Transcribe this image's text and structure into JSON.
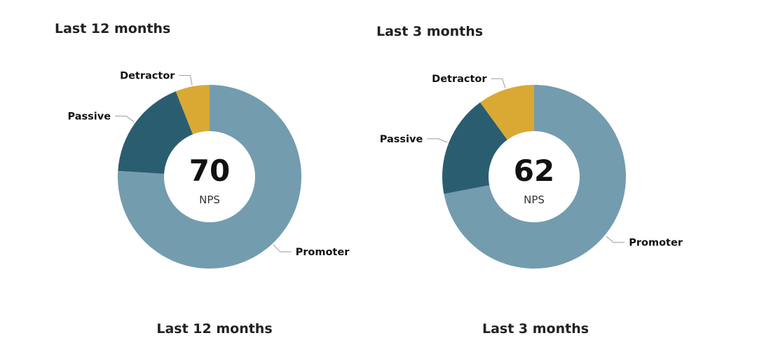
{
  "chart_data": [
    {
      "type": "pie",
      "title": "Last 12 months",
      "caption": "Last 12 months",
      "center_value": "70",
      "center_label": "NPS",
      "donut": true,
      "slices": [
        {
          "label": "Promoter",
          "value": 76,
          "color": "#739cae"
        },
        {
          "label": "Passive",
          "value": 18,
          "color": "#2b5d71"
        },
        {
          "label": "Detractor",
          "value": 6,
          "color": "#d9a934"
        }
      ]
    },
    {
      "type": "pie",
      "title": "Last 3 months",
      "caption": "Last 3 months",
      "center_value": "62",
      "center_label": "NPS",
      "donut": true,
      "slices": [
        {
          "label": "Promoter",
          "value": 72,
          "color": "#739cae"
        },
        {
          "label": "Passive",
          "value": 18,
          "color": "#2b5d71"
        },
        {
          "label": "Detractor",
          "value": 10,
          "color": "#d9a934"
        }
      ]
    }
  ]
}
